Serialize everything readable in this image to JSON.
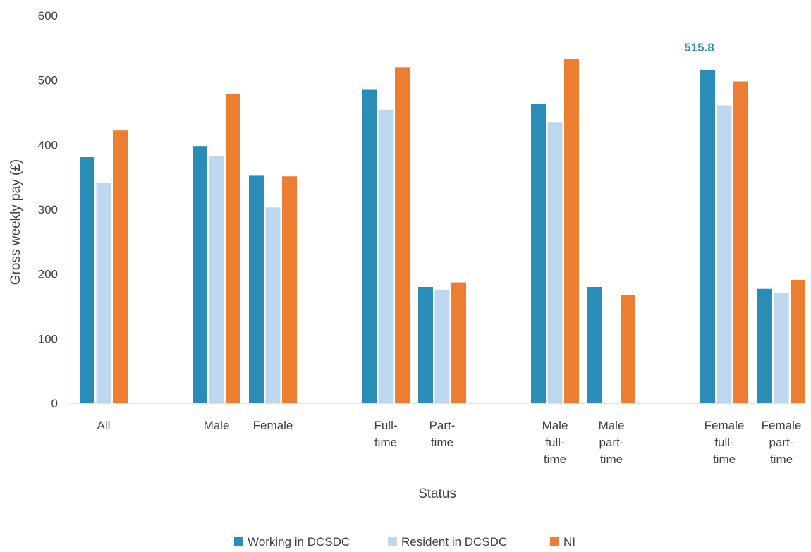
{
  "chart_data": {
    "type": "bar",
    "title": "",
    "xlabel": "Status",
    "ylabel": "Gross weekly pay (£)",
    "ylim": [
      0,
      600
    ],
    "yticks": [
      0,
      100,
      200,
      300,
      400,
      500,
      600
    ],
    "grid": false,
    "legend_position": "bottom",
    "categories": [
      {
        "lines": [
          "All"
        ]
      },
      {
        "lines": [
          "Male"
        ]
      },
      {
        "lines": [
          "Female"
        ]
      },
      {
        "lines": [
          "Full-",
          "time"
        ]
      },
      {
        "lines": [
          "Part-",
          "time"
        ]
      },
      {
        "lines": [
          "Male",
          "full-",
          "time"
        ]
      },
      {
        "lines": [
          "Male",
          "part-",
          "time"
        ]
      },
      {
        "lines": [
          "Female",
          "full-",
          "time"
        ]
      },
      {
        "lines": [
          "Female",
          "part-",
          "time"
        ]
      }
    ],
    "series": [
      {
        "name": "Working in DCSDC",
        "color": "#2b8cb8",
        "values": [
          381,
          398,
          353,
          486,
          180,
          463,
          180,
          515.8,
          177
        ]
      },
      {
        "name": "Resident in DCSDC",
        "color": "#bdd7ee",
        "values": [
          341,
          383,
          303,
          454,
          175,
          435,
          null,
          461,
          171
        ]
      },
      {
        "name": "NI",
        "color": "#ed7d31",
        "values": [
          422,
          478,
          351,
          520,
          187,
          533,
          167,
          498,
          191
        ]
      }
    ],
    "annotations": [
      {
        "text": "515.8",
        "category_index": 7,
        "series_index": 0,
        "color": "#2b8cb8"
      }
    ]
  }
}
